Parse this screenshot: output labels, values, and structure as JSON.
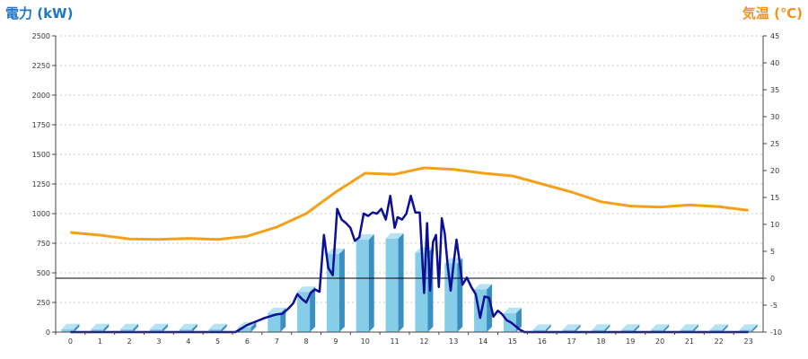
{
  "chart_data": {
    "type": "bar+line",
    "ylabel_left": "電力 (kW)",
    "ylabel_right": "気温 (℃)",
    "ylim_left": [
      0,
      2500
    ],
    "ylim_right": [
      -10,
      45
    ],
    "left_ticks": [
      "0",
      "250",
      "500",
      "750",
      "1000",
      "1250",
      "1500",
      "1750",
      "2000",
      "2250",
      "2500"
    ],
    "right_ticks": [
      "-10",
      "-5",
      "0",
      "5",
      "10",
      "15",
      "20",
      "25",
      "30",
      "35",
      "40",
      "45"
    ],
    "categories": [
      "0",
      "1",
      "2",
      "3",
      "4",
      "5",
      "6",
      "7",
      "8",
      "9",
      "10",
      "11",
      "12",
      "13",
      "14",
      "15",
      "16",
      "17",
      "18",
      "19",
      "20",
      "21",
      "22",
      "23"
    ],
    "grid": true,
    "colors": {
      "bar_front": "#85cde9",
      "bar_side": "#3b8fc0",
      "bar_top": "#b5e3f4",
      "power_line": "#0a0f96",
      "temp_line": "#f5a019",
      "zero_line": "#000000",
      "grid": "#c8c8c8"
    },
    "bars": {
      "name": "電力 (kW) hourly",
      "values": [
        25,
        25,
        25,
        25,
        25,
        25,
        40,
        160,
        340,
        660,
        780,
        790,
        670,
        580,
        360,
        160,
        20,
        20,
        20,
        20,
        20,
        20,
        20,
        20
      ]
    },
    "power_line": {
      "x": [
        0,
        1,
        2,
        3,
        4,
        5,
        5.6,
        6,
        6.3,
        6.6,
        7,
        7.2,
        7.4,
        7.55,
        7.7,
        7.85,
        8,
        8.15,
        8.3,
        8.45,
        8.6,
        8.75,
        8.9,
        9.05,
        9.2,
        9.35,
        9.5,
        9.65,
        9.8,
        9.95,
        10.1,
        10.25,
        10.4,
        10.55,
        10.7,
        10.85,
        11,
        11.1,
        11.25,
        11.4,
        11.55,
        11.7,
        11.85,
        12,
        12.1,
        12.2,
        12.3,
        12.4,
        12.5,
        12.6,
        12.7,
        12.8,
        12.9,
        13,
        13.1,
        13.2,
        13.3,
        13.45,
        13.6,
        13.75,
        13.9,
        14.05,
        14.2,
        14.35,
        14.5,
        14.65,
        14.8,
        14.95,
        15.1,
        15.25,
        15.4,
        15.55,
        15.7,
        15.85,
        16,
        17,
        18,
        19,
        20,
        21,
        22,
        23
      ],
      "y": [
        0,
        0,
        0,
        0,
        0,
        0,
        0,
        60,
        90,
        120,
        150,
        155,
        200,
        240,
        320,
        280,
        250,
        330,
        360,
        340,
        820,
        540,
        480,
        1040,
        950,
        920,
        880,
        770,
        800,
        1000,
        980,
        1010,
        1000,
        1040,
        950,
        1150,
        880,
        970,
        950,
        1000,
        1150,
        1010,
        1010,
        330,
        920,
        350,
        760,
        820,
        380,
        960,
        830,
        560,
        350,
        580,
        780,
        600,
        400,
        460,
        380,
        320,
        120,
        300,
        290,
        130,
        180,
        150,
        100,
        80,
        50,
        20,
        0,
        0,
        0,
        0,
        0,
        0,
        0,
        0,
        0,
        0,
        0,
        0
      ]
    },
    "temp_line": {
      "x": [
        0,
        1,
        2,
        3,
        4,
        5,
        6,
        7,
        8,
        9,
        10,
        11,
        12,
        13,
        14,
        15,
        16,
        17,
        18,
        19,
        20,
        21,
        22,
        23
      ],
      "y": [
        8.5,
        8,
        7.3,
        7.2,
        7.4,
        7.2,
        7.8,
        9.5,
        12,
        16,
        19.5,
        19.3,
        20.5,
        20.2,
        19.5,
        19,
        17.5,
        16,
        14.2,
        13.4,
        13.2,
        13.6,
        13.3,
        12.6
      ]
    }
  }
}
